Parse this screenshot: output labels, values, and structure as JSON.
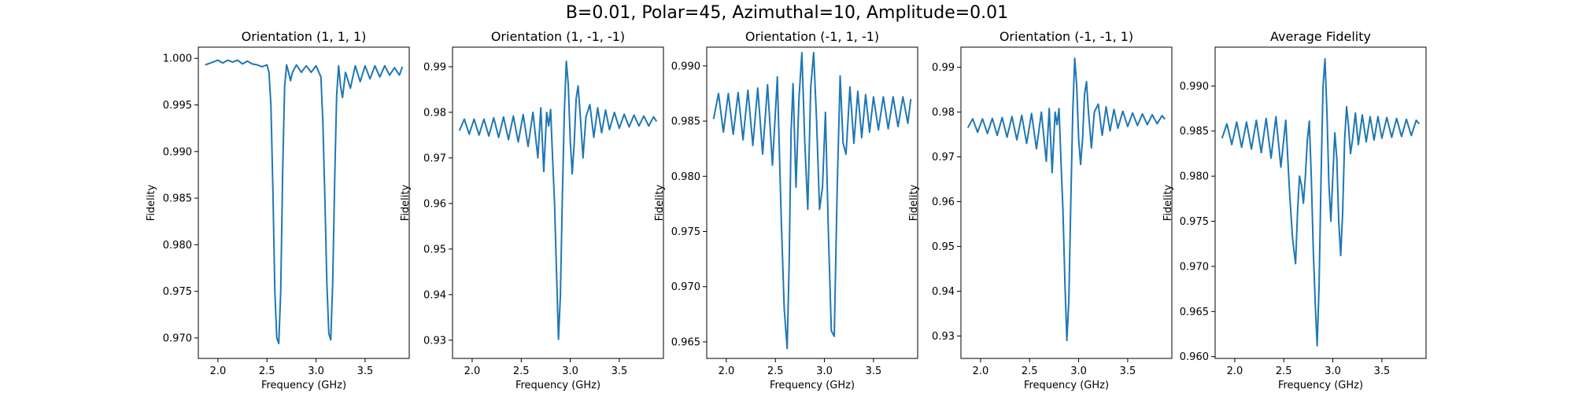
{
  "figure": {
    "title": "B=0.01, Polar=45, Azimuthal=10, Amplitude=0.01"
  },
  "chart_data": [
    {
      "type": "line",
      "title": "Orientation (1, 1, 1)",
      "xlabel": "Frequency (GHz)",
      "ylabel": "Fidelity",
      "xlim": [
        1.8,
        3.95
      ],
      "ylim": [
        0.9678,
        1.0012
      ],
      "xticks": [
        2.0,
        2.5,
        3.0,
        3.5
      ],
      "xtick_labels": [
        "2.0",
        "2.5",
        "3.0",
        "3.5"
      ],
      "yticks": [
        0.97,
        0.975,
        0.98,
        0.985,
        0.99,
        0.995,
        1.0
      ],
      "ytick_labels": [
        "0.970",
        "0.975",
        "0.980",
        "0.985",
        "0.990",
        "0.995",
        "1.000"
      ],
      "color": "#1f77b4",
      "series": [
        {
          "x": [
            1.87,
            1.95,
            2.0,
            2.05,
            2.1,
            2.15,
            2.2,
            2.25,
            2.3,
            2.35,
            2.4,
            2.45,
            2.5,
            2.52,
            2.54,
            2.56,
            2.58,
            2.6,
            2.62,
            2.64,
            2.66,
            2.68,
            2.7,
            2.72,
            2.74,
            2.76,
            2.8,
            2.85,
            2.9,
            2.95,
            3.0,
            3.05,
            3.07,
            3.09,
            3.11,
            3.13,
            3.15,
            3.17,
            3.19,
            3.21,
            3.23,
            3.25,
            3.27,
            3.3,
            3.35,
            3.4,
            3.45,
            3.5,
            3.55,
            3.6,
            3.65,
            3.7,
            3.75,
            3.8,
            3.85,
            3.88
          ],
          "y": [
            0.9993,
            0.9996,
            0.9998,
            0.9995,
            0.9998,
            0.9996,
            0.9998,
            0.9994,
            0.9997,
            0.9994,
            0.9993,
            0.9991,
            0.9993,
            0.9985,
            0.995,
            0.986,
            0.975,
            0.97,
            0.9694,
            0.975,
            0.988,
            0.997,
            0.9993,
            0.9985,
            0.9976,
            0.9985,
            0.9993,
            0.9985,
            0.9992,
            0.9985,
            0.9992,
            0.998,
            0.993,
            0.985,
            0.976,
            0.9705,
            0.9698,
            0.976,
            0.987,
            0.996,
            0.9992,
            0.997,
            0.9958,
            0.9985,
            0.9968,
            0.9992,
            0.9975,
            0.9992,
            0.9978,
            0.9992,
            0.998,
            0.9992,
            0.9982,
            0.999,
            0.9982,
            0.9991
          ]
        }
      ]
    },
    {
      "type": "line",
      "title": "Orientation (1, -1, -1)",
      "xlabel": "Frequency (GHz)",
      "ylabel": "Fidelity",
      "xlim": [
        1.8,
        3.95
      ],
      "ylim": [
        0.926,
        0.9943
      ],
      "xticks": [
        2.0,
        2.5,
        3.0,
        3.5
      ],
      "xtick_labels": [
        "2.0",
        "2.5",
        "3.0",
        "3.5"
      ],
      "yticks": [
        0.93,
        0.94,
        0.95,
        0.96,
        0.97,
        0.98,
        0.99
      ],
      "ytick_labels": [
        "0.93",
        "0.94",
        "0.95",
        "0.96",
        "0.97",
        "0.98",
        "0.99"
      ],
      "color": "#1f77b4",
      "series": [
        {
          "x": [
            1.87,
            1.92,
            1.97,
            2.02,
            2.07,
            2.12,
            2.17,
            2.22,
            2.27,
            2.32,
            2.37,
            2.42,
            2.47,
            2.52,
            2.57,
            2.62,
            2.67,
            2.7,
            2.73,
            2.76,
            2.78,
            2.8,
            2.82,
            2.84,
            2.86,
            2.88,
            2.9,
            2.92,
            2.94,
            2.96,
            2.98,
            3.0,
            3.02,
            3.04,
            3.06,
            3.08,
            3.1,
            3.13,
            3.16,
            3.2,
            3.24,
            3.28,
            3.32,
            3.36,
            3.4,
            3.45,
            3.5,
            3.55,
            3.6,
            3.65,
            3.7,
            3.75,
            3.8,
            3.85,
            3.88
          ],
          "y": [
            0.976,
            0.9785,
            0.9752,
            0.9785,
            0.975,
            0.9785,
            0.9748,
            0.9788,
            0.9745,
            0.979,
            0.974,
            0.9792,
            0.9735,
            0.9795,
            0.9725,
            0.98,
            0.97,
            0.981,
            0.967,
            0.98,
            0.977,
            0.9806,
            0.97,
            0.96,
            0.945,
            0.9302,
            0.94,
            0.962,
            0.98,
            0.9912,
            0.986,
            0.974,
            0.9665,
            0.973,
            0.983,
            0.9858,
            0.98,
            0.97,
            0.979,
            0.9817,
            0.9745,
            0.981,
            0.9755,
            0.9805,
            0.9762,
            0.98,
            0.9765,
            0.9796,
            0.9768,
            0.9794,
            0.977,
            0.9792,
            0.977,
            0.979,
            0.978
          ]
        }
      ]
    },
    {
      "type": "line",
      "title": "Orientation (-1, 1, -1)",
      "xlabel": "Frequency (GHz)",
      "ylabel": "Fidelity",
      "xlim": [
        1.8,
        3.95
      ],
      "ylim": [
        0.9635,
        0.9917
      ],
      "xticks": [
        2.0,
        2.5,
        3.0,
        3.5
      ],
      "xtick_labels": [
        "2.0",
        "2.5",
        "3.0",
        "3.5"
      ],
      "yticks": [
        0.965,
        0.97,
        0.975,
        0.98,
        0.985,
        0.99
      ],
      "ytick_labels": [
        "0.965",
        "0.970",
        "0.975",
        "0.980",
        "0.985",
        "0.990"
      ],
      "color": "#1f77b4",
      "series": [
        {
          "x": [
            1.87,
            1.92,
            1.97,
            2.02,
            2.07,
            2.12,
            2.17,
            2.22,
            2.27,
            2.32,
            2.37,
            2.42,
            2.47,
            2.52,
            2.56,
            2.59,
            2.62,
            2.64,
            2.66,
            2.68,
            2.71,
            2.74,
            2.77,
            2.8,
            2.83,
            2.86,
            2.89,
            2.92,
            2.95,
            2.98,
            3.01,
            3.04,
            3.07,
            3.1,
            3.13,
            3.16,
            3.19,
            3.22,
            3.26,
            3.3,
            3.34,
            3.38,
            3.42,
            3.46,
            3.5,
            3.55,
            3.6,
            3.65,
            3.7,
            3.75,
            3.8,
            3.85,
            3.88
          ],
          "y": [
            0.9852,
            0.9875,
            0.984,
            0.9875,
            0.9838,
            0.9876,
            0.9833,
            0.9878,
            0.9828,
            0.988,
            0.982,
            0.9883,
            0.981,
            0.989,
            0.976,
            0.968,
            0.9644,
            0.972,
            0.984,
            0.9884,
            0.979,
            0.987,
            0.9912,
            0.983,
            0.977,
            0.988,
            0.9912,
            0.985,
            0.977,
            0.979,
            0.9858,
            0.975,
            0.966,
            0.9655,
            0.979,
            0.9891,
            0.983,
            0.982,
            0.9881,
            0.983,
            0.9877,
            0.9835,
            0.9874,
            0.984,
            0.9872,
            0.9842,
            0.9872,
            0.9843,
            0.9872,
            0.9845,
            0.9872,
            0.9848,
            0.987
          ]
        }
      ]
    },
    {
      "type": "line",
      "title": "Orientation (-1, -1, 1)",
      "xlabel": "Frequency (GHz)",
      "ylabel": "Fidelity",
      "xlim": [
        1.8,
        3.95
      ],
      "ylim": [
        0.925,
        0.9945
      ],
      "xticks": [
        2.0,
        2.5,
        3.0,
        3.5
      ],
      "xtick_labels": [
        "2.0",
        "2.5",
        "3.0",
        "3.5"
      ],
      "yticks": [
        0.93,
        0.94,
        0.95,
        0.96,
        0.97,
        0.98,
        0.99
      ],
      "ytick_labels": [
        "0.93",
        "0.94",
        "0.95",
        "0.96",
        "0.97",
        "0.98",
        "0.99"
      ],
      "color": "#1f77b4",
      "series": [
        {
          "x": [
            1.87,
            1.92,
            1.97,
            2.02,
            2.07,
            2.12,
            2.17,
            2.22,
            2.27,
            2.32,
            2.37,
            2.42,
            2.47,
            2.52,
            2.57,
            2.62,
            2.67,
            2.7,
            2.73,
            2.76,
            2.78,
            2.8,
            2.82,
            2.84,
            2.86,
            2.88,
            2.9,
            2.92,
            2.94,
            2.96,
            2.98,
            3.0,
            3.02,
            3.04,
            3.06,
            3.08,
            3.1,
            3.13,
            3.16,
            3.2,
            3.24,
            3.28,
            3.32,
            3.36,
            3.4,
            3.45,
            3.5,
            3.55,
            3.6,
            3.65,
            3.7,
            3.75,
            3.8,
            3.85,
            3.88
          ],
          "y": [
            0.9765,
            0.9785,
            0.9755,
            0.9785,
            0.9752,
            0.9786,
            0.9748,
            0.9788,
            0.9744,
            0.979,
            0.9738,
            0.9793,
            0.973,
            0.9797,
            0.9718,
            0.98,
            0.969,
            0.9808,
            0.9665,
            0.98,
            0.9772,
            0.9808,
            0.969,
            0.958,
            0.942,
            0.929,
            0.938,
            0.96,
            0.98,
            0.992,
            0.986,
            0.974,
            0.9683,
            0.974,
            0.984,
            0.9868,
            0.98,
            0.972,
            0.98,
            0.9818,
            0.9748,
            0.9812,
            0.9758,
            0.9806,
            0.9764,
            0.9802,
            0.9768,
            0.9798,
            0.977,
            0.9796,
            0.9772,
            0.9794,
            0.9774,
            0.9792,
            0.9784
          ]
        }
      ]
    },
    {
      "type": "line",
      "title": "Average Fidelity",
      "xlabel": "Frequency (GHz)",
      "ylabel": "Fidelity",
      "xlim": [
        1.8,
        3.95
      ],
      "ylim": [
        0.9598,
        0.9943
      ],
      "xticks": [
        2.0,
        2.5,
        3.0,
        3.5
      ],
      "xtick_labels": [
        "2.0",
        "2.5",
        "3.0",
        "3.5"
      ],
      "yticks": [
        0.96,
        0.965,
        0.97,
        0.975,
        0.98,
        0.985,
        0.99
      ],
      "ytick_labels": [
        "0.960",
        "0.965",
        "0.970",
        "0.975",
        "0.980",
        "0.985",
        "0.990"
      ],
      "color": "#1f77b4",
      "series": [
        {
          "x": [
            1.87,
            1.92,
            1.97,
            2.02,
            2.07,
            2.12,
            2.17,
            2.22,
            2.27,
            2.32,
            2.37,
            2.42,
            2.47,
            2.52,
            2.56,
            2.59,
            2.62,
            2.64,
            2.66,
            2.68,
            2.7,
            2.72,
            2.74,
            2.76,
            2.78,
            2.8,
            2.82,
            2.84,
            2.86,
            2.88,
            2.9,
            2.92,
            2.94,
            2.96,
            2.98,
            3.0,
            3.02,
            3.04,
            3.06,
            3.08,
            3.1,
            3.12,
            3.14,
            3.16,
            3.18,
            3.2,
            3.23,
            3.26,
            3.3,
            3.34,
            3.38,
            3.42,
            3.46,
            3.5,
            3.55,
            3.6,
            3.65,
            3.7,
            3.75,
            3.8,
            3.85,
            3.88
          ],
          "y": [
            0.9842,
            0.9858,
            0.9835,
            0.986,
            0.9832,
            0.986,
            0.983,
            0.9862,
            0.9826,
            0.9864,
            0.982,
            0.9866,
            0.981,
            0.9862,
            0.978,
            0.973,
            0.9703,
            0.976,
            0.98,
            0.979,
            0.977,
            0.98,
            0.984,
            0.9861,
            0.98,
            0.972,
            0.966,
            0.9612,
            0.968,
            0.98,
            0.99,
            0.993,
            0.987,
            0.979,
            0.975,
            0.98,
            0.9848,
            0.982,
            0.975,
            0.9712,
            0.976,
            0.984,
            0.9877,
            0.9855,
            0.9825,
            0.984,
            0.987,
            0.9835,
            0.9868,
            0.9838,
            0.9866,
            0.984,
            0.9866,
            0.9842,
            0.9865,
            0.9843,
            0.9864,
            0.9844,
            0.9863,
            0.9845,
            0.9862,
            0.9858
          ]
        }
      ]
    }
  ]
}
